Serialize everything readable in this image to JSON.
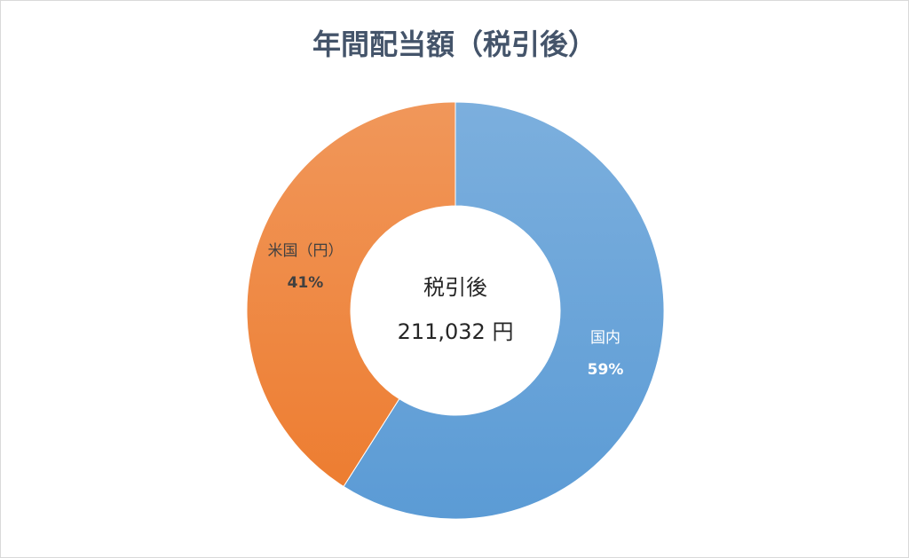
{
  "chart_data": {
    "type": "donut",
    "title": "年間配当額（税引後）",
    "categories": [
      "国内",
      "米国（円）"
    ],
    "values": [
      59,
      41
    ],
    "value_labels": [
      "59%",
      "41%"
    ],
    "colors": [
      "#5b9bd5",
      "#ed7d31"
    ],
    "label_colors": [
      "#ffffff",
      "#404040"
    ],
    "center_title": "税引後",
    "center_text": "211,032 円"
  }
}
